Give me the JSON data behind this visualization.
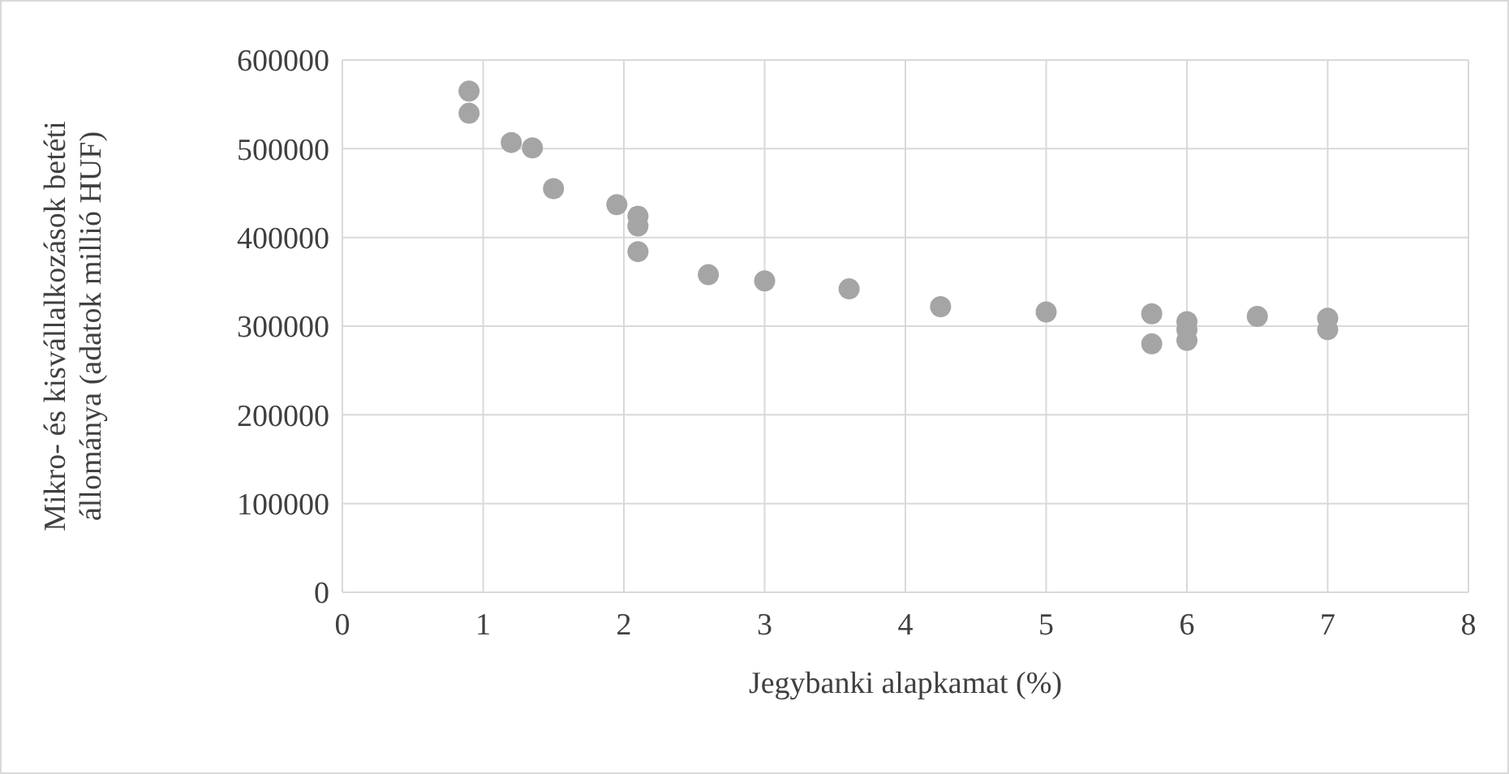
{
  "chart_data": {
    "type": "scatter",
    "xlabel": "Jegybanki alapkamat (%)",
    "ylabel": "Mikro- és kisvállalkozások  betéti állománya (adatok millió HUF)",
    "x": [
      0.9,
      0.9,
      1.2,
      1.35,
      1.5,
      1.95,
      2.1,
      2.1,
      2.1,
      2.6,
      3.0,
      3.6,
      4.25,
      5.0,
      5.75,
      5.75,
      6.0,
      6.0,
      6.0,
      6.5,
      7.0,
      7.0
    ],
    "series": [
      {
        "color": "#a5a5a5",
        "values": [
          565000,
          540000,
          507000,
          501000,
          455000,
          437000,
          424000,
          413000,
          384000,
          358000,
          351000,
          342000,
          322000,
          316000,
          314000,
          280000,
          305000,
          296000,
          284000,
          311000,
          309000,
          296000
        ]
      }
    ],
    "xlim": [
      0,
      8
    ],
    "xticks": [
      0,
      1,
      2,
      3,
      4,
      5,
      6,
      7,
      8
    ],
    "ylim": [
      0,
      600000
    ],
    "yticks": [
      0,
      100000,
      200000,
      300000,
      400000,
      500000,
      600000
    ],
    "grid": true,
    "marker": "circle"
  }
}
